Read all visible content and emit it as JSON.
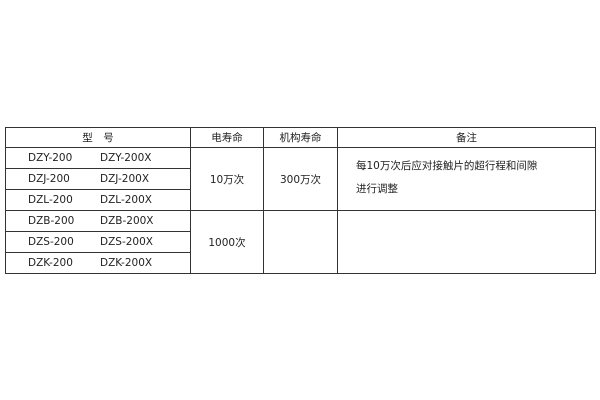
{
  "headers": [
    "型　号",
    "电寿命",
    "机构寿命",
    "备注"
  ],
  "rows": [
    {
      "model_a": "DZY-200",
      "model_b": "DZY-200X"
    },
    {
      "model_a": "DZJ-200",
      "model_b": "DZJ-200X"
    },
    {
      "model_a": "DZL-200",
      "model_b": "DZL-200X"
    },
    {
      "model_a": "DZB-200",
      "model_b": "DZB-200X"
    },
    {
      "model_a": "DZS-200",
      "model_b": "DZS-200X"
    },
    {
      "model_a": "DZK-200",
      "model_b": "DZK-200X"
    }
  ],
  "groups": [
    {
      "electrical_life": "10万次",
      "mechanical_life": "300万次",
      "note_line1": "每10万次后应对接触片的超行程和间隙",
      "note_line2": "进行调整"
    },
    {
      "electrical_life": "1000次",
      "mechanical_life": "",
      "note_line1": "",
      "note_line2": ""
    }
  ]
}
